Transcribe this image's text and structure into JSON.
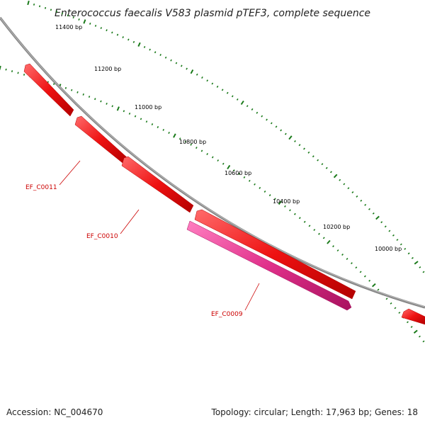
{
  "title": "Enterococcus faecalis V583 plasmid pTEF3, complete sequence",
  "footer": {
    "accession": "Accession: NC_004670",
    "summary": "Topology: circular; Length: 17,963 bp; Genes: 18"
  },
  "colors": {
    "backbone": "#888888",
    "ticks": "#1a7a1a",
    "forward_gene": "#ee1111",
    "reverse_gene": "#e0308a",
    "label": "#cc0000"
  },
  "bp_labels": [
    "11400 bp",
    "11200 bp",
    "11000 bp",
    "10800 bp",
    "10600 bp",
    "10400 bp",
    "10200 bp",
    "10000 bp"
  ],
  "genes": [
    {
      "name": "EF_C0011",
      "strand": "forward"
    },
    {
      "name": "EF_C0010",
      "strand": "forward"
    },
    {
      "name": "EF_C0009",
      "strand": "reverse"
    }
  ]
}
